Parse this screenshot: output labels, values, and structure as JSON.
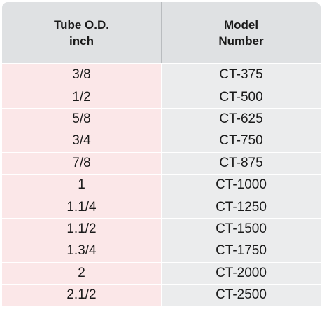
{
  "table": {
    "header": {
      "col1": "Tube O.D.\ninch",
      "col2": "Model\nNumber"
    },
    "rows": [
      {
        "od": "3/8",
        "model": "CT-375"
      },
      {
        "od": "1/2",
        "model": "CT-500"
      },
      {
        "od": "5/8",
        "model": "CT-625"
      },
      {
        "od": "3/4",
        "model": "CT-750"
      },
      {
        "od": "7/8",
        "model": "CT-875"
      },
      {
        "od": "1",
        "model": "CT-1000"
      },
      {
        "od": "1.1/4",
        "model": "CT-1250"
      },
      {
        "od": "1.1/2",
        "model": "CT-1500"
      },
      {
        "od": "1.3/4",
        "model": "CT-1750"
      },
      {
        "od": "2",
        "model": "CT-2000"
      },
      {
        "od": "2.1/2",
        "model": "CT-2500"
      }
    ]
  },
  "colors": {
    "header_bg": "#dfe1e3",
    "left_col_bg": "#fbe7e8",
    "right_col_bg": "#ebeced"
  }
}
